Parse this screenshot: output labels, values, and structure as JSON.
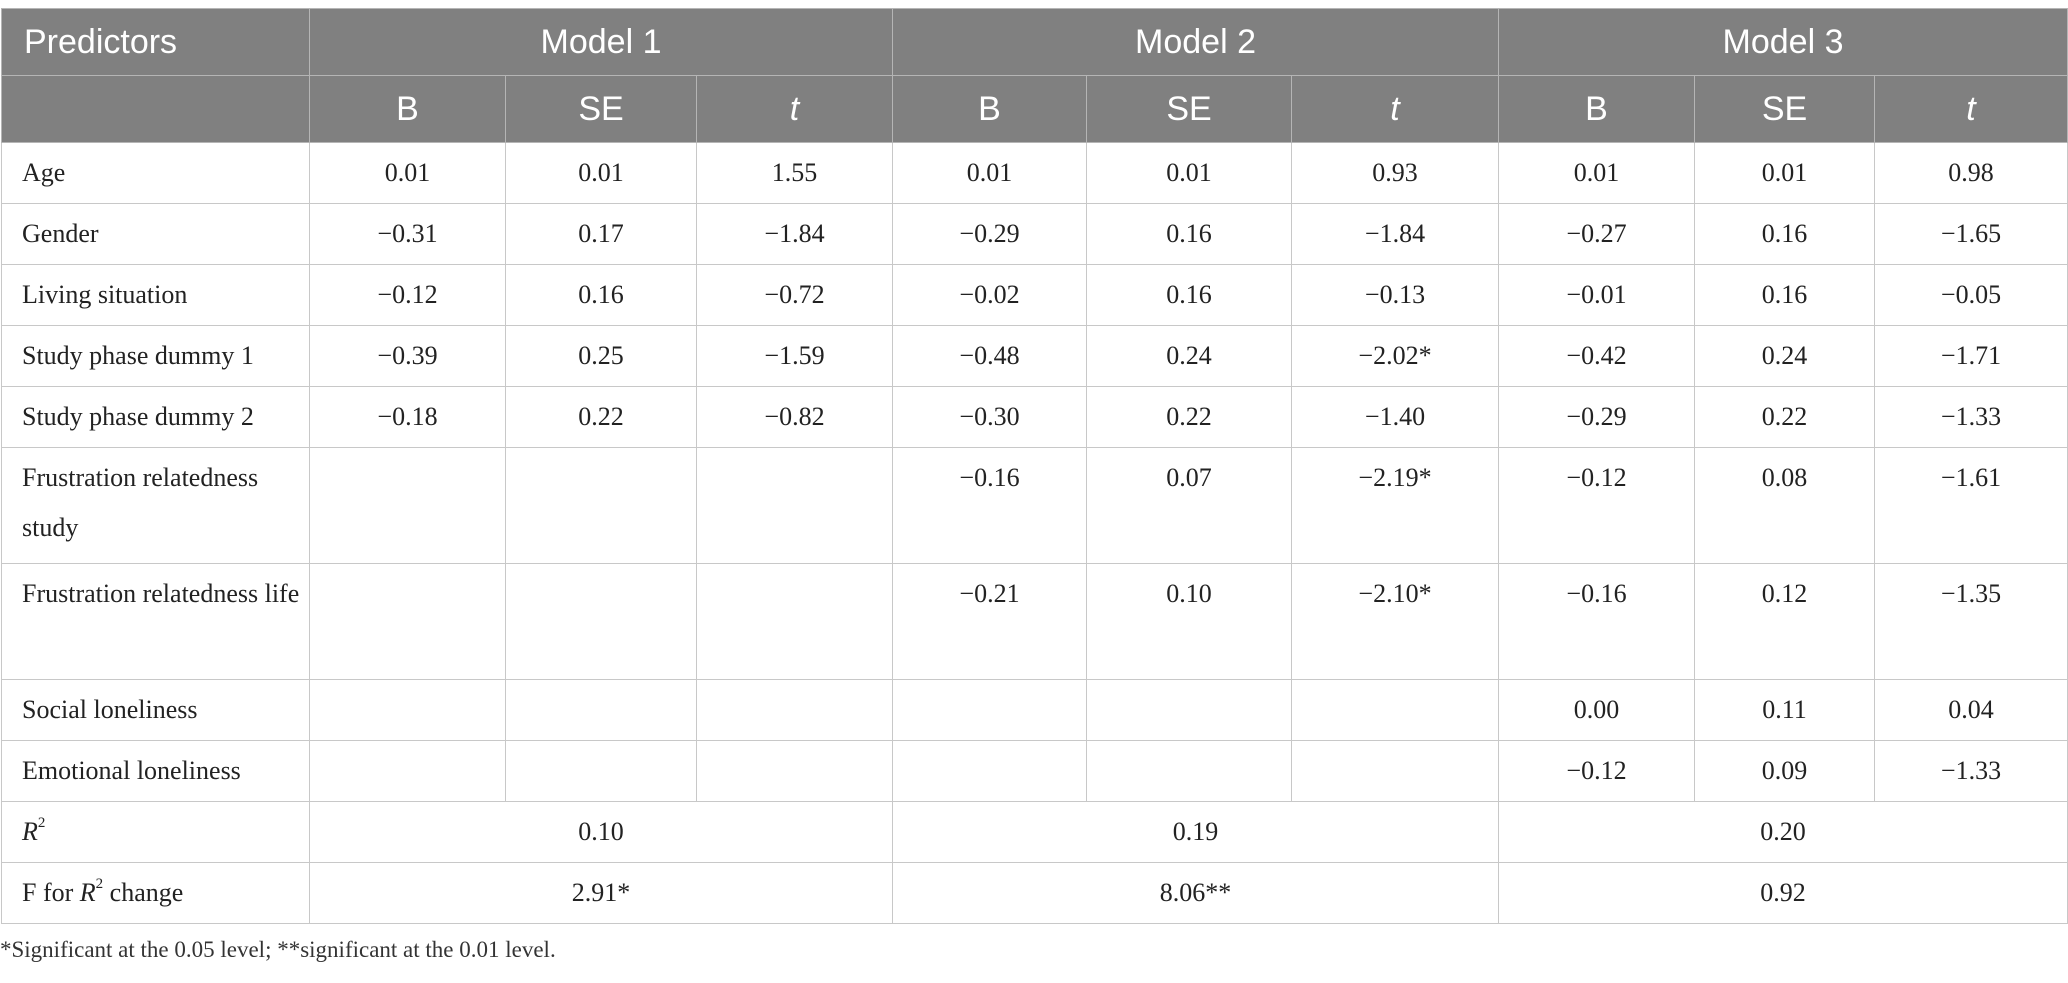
{
  "table": {
    "header": {
      "predictors": "Predictors",
      "models": [
        "Model 1",
        "Model 2",
        "Model 3"
      ],
      "sub": [
        "B",
        "SE",
        "t"
      ]
    },
    "rows": [
      {
        "label": "Age",
        "values": [
          "0.01",
          "0.01",
          "1.55",
          "0.01",
          "0.01",
          "0.93",
          "0.01",
          "0.01",
          "0.98"
        ]
      },
      {
        "label": "Gender",
        "values": [
          "−0.31",
          "0.17",
          "−1.84",
          "−0.29",
          "0.16",
          "−1.84",
          "−0.27",
          "0.16",
          "−1.65"
        ]
      },
      {
        "label": "Living situation",
        "values": [
          "−0.12",
          "0.16",
          "−0.72",
          "−0.02",
          "0.16",
          "−0.13",
          "−0.01",
          "0.16",
          "−0.05"
        ]
      },
      {
        "label": "Study phase dummy 1",
        "values": [
          "−0.39",
          "0.25",
          "−1.59",
          "−0.48",
          "0.24",
          "−2.02*",
          "−0.42",
          "0.24",
          "−1.71"
        ]
      },
      {
        "label": "Study phase dummy 2",
        "values": [
          "−0.18",
          "0.22",
          "−0.82",
          "−0.30",
          "0.22",
          "−1.40",
          "−0.29",
          "0.22",
          "−1.33"
        ]
      },
      {
        "label": "Frustration relatedness study",
        "values": [
          "",
          "",
          "",
          "−0.16",
          "0.07",
          "−2.19*",
          "−0.12",
          "0.08",
          "−1.61"
        ]
      },
      {
        "label": "Frustration relatedness life",
        "values": [
          "",
          "",
          "",
          "−0.21",
          "0.10",
          "−2.10*",
          "−0.16",
          "0.12",
          "−1.35"
        ]
      },
      {
        "label": "Social loneliness",
        "values": [
          "",
          "",
          "",
          "",
          "",
          "",
          "0.00",
          "0.11",
          "0.04"
        ]
      },
      {
        "label": "Emotional loneliness",
        "values": [
          "",
          "",
          "",
          "",
          "",
          "",
          "−0.12",
          "0.09",
          "−1.33"
        ]
      }
    ],
    "r2": {
      "label": "R",
      "sup": "2",
      "values": [
        "0.10",
        "0.19",
        "0.20"
      ]
    },
    "f_change": {
      "label_pre": "F for ",
      "label_r": "R",
      "label_sup": "2",
      "label_post": " change",
      "values": [
        "2.91*",
        "8.06**",
        "0.92"
      ]
    }
  },
  "footnote": "*Significant at the 0.05 level; **significant at the 0.01 level.",
  "colors": {
    "header_bg": "#808080",
    "header_text": "#ffffff",
    "grid": "#c8c8c8"
  }
}
